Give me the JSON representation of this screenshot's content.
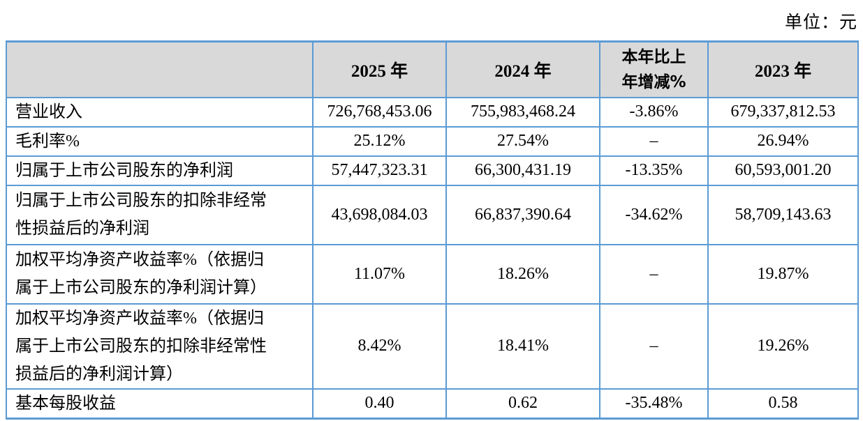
{
  "unit_label": "单位：元",
  "colors": {
    "border": "#5b9bd5",
    "header_bg": "#d9d9d9",
    "text": "#000000",
    "page_bg": "#ffffff"
  },
  "table": {
    "columns": [
      {
        "label": ""
      },
      {
        "label": "2025 年"
      },
      {
        "label": "2024 年"
      },
      {
        "label": "本年比上年增减%"
      },
      {
        "label": "2023 年"
      }
    ],
    "rows": [
      {
        "label": "营业收入",
        "values": [
          "726,768,453.06",
          "755,983,468.24",
          "-3.86%",
          "679,337,812.53"
        ]
      },
      {
        "label": "毛利率%",
        "values": [
          "25.12%",
          "27.54%",
          "–",
          "26.94%"
        ]
      },
      {
        "label": "归属于上市公司股东的净利润",
        "values": [
          "57,447,323.31",
          "66,300,431.19",
          "-13.35%",
          "60,593,001.20"
        ]
      },
      {
        "label": "归属于上市公司股东的扣除非经常性损益后的净利润",
        "values": [
          "43,698,084.03",
          "66,837,390.64",
          "-34.62%",
          "58,709,143.63"
        ]
      },
      {
        "label": "加权平均净资产收益率%（依据归属于上市公司股东的净利润计算）",
        "values": [
          "11.07%",
          "18.26%",
          "–",
          "19.87%"
        ]
      },
      {
        "label": "加权平均净资产收益率%（依据归属于上市公司股东的扣除非经常性损益后的净利润计算）",
        "values": [
          "8.42%",
          "18.41%",
          "–",
          "19.26%"
        ]
      },
      {
        "label": "基本每股收益",
        "values": [
          "0.40",
          "0.62",
          "-35.48%",
          "0.58"
        ]
      }
    ]
  }
}
